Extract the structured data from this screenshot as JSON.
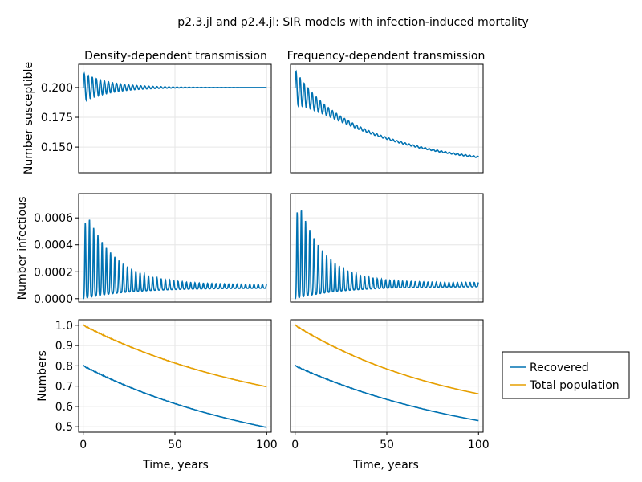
{
  "title": "p2.3.jl and p2.4.jl: SIR models with infection-induced mortality",
  "colors": {
    "blue": "#0072b2",
    "orange": "#e69f00",
    "grid": "#e6e6e6",
    "frame": "#000000"
  },
  "legend": {
    "items": [
      "Recovered",
      "Total population"
    ],
    "placement": "right"
  },
  "chart_data": [
    {
      "type": "line",
      "title": "Density-dependent transmission",
      "xlabel": "",
      "ylabel": "Number susceptible",
      "xlim": [
        -2.5,
        102.5
      ],
      "ylim": [
        0.1285,
        0.2195
      ],
      "xticks": [
        0,
        50,
        100
      ],
      "yticks": [
        0.15,
        0.175,
        0.2
      ],
      "ytick_labels": [
        "0.150",
        "0.175",
        "0.200"
      ],
      "series": [
        {
          "color": "blue",
          "model": "osc",
          "start": 0.2,
          "final": 0.2,
          "amp0": 0.012,
          "amp_decay": 15,
          "period": 2.2
        }
      ]
    },
    {
      "type": "line",
      "title": "Frequency-dependent transmission",
      "xlabel": "",
      "ylabel": "",
      "xlim": [
        -2.5,
        102.5
      ],
      "ylim": [
        0.1285,
        0.2195
      ],
      "xticks": [
        0,
        50,
        100
      ],
      "yticks": [
        0.15,
        0.175,
        0.2
      ],
      "ytick_labels": [
        "",
        "",
        ""
      ],
      "series": [
        {
          "color": "blue",
          "model": "trend_osc",
          "start": 0.2,
          "final": 0.1325,
          "trend_scale": 50,
          "amp0": 0.014,
          "amp_decay": 12,
          "period": 2.2
        }
      ]
    },
    {
      "type": "line",
      "title": "",
      "xlabel": "",
      "ylabel": "Number infectious",
      "xlim": [
        -2.5,
        102.5
      ],
      "ylim": [
        -2.5e-05,
        0.00078
      ],
      "xticks": [
        0,
        50,
        100
      ],
      "yticks": [
        0,
        0.0002,
        0.0004,
        0.0006
      ],
      "ytick_labels": [
        "0.0000",
        "0.0002",
        "0.0004",
        "0.0006"
      ],
      "series": [
        {
          "color": "blue",
          "model": "spikes",
          "period": 2.3,
          "width": 0.42,
          "t_first": 1.1,
          "level": 0.000105,
          "peak0": 0.00067,
          "peak_decay": 16,
          "baseline_rise": 25
        }
      ]
    },
    {
      "type": "line",
      "title": "",
      "xlabel": "",
      "ylabel": "",
      "xlim": [
        -2.5,
        102.5
      ],
      "ylim": [
        -2.5e-05,
        0.00078
      ],
      "xticks": [
        0,
        50,
        100
      ],
      "yticks": [
        0,
        0.0002,
        0.0004,
        0.0006
      ],
      "ytick_labels": [
        "",
        "",
        "",
        ""
      ],
      "series": [
        {
          "color": "blue",
          "model": "spikes",
          "period": 2.3,
          "width": 0.42,
          "t_first": 1.1,
          "level": 0.00012,
          "peak0": 0.00076,
          "peak_decay": 14,
          "baseline_rise": 25
        }
      ]
    },
    {
      "type": "line",
      "title": "",
      "xlabel": "Time, years",
      "ylabel": "Numbers",
      "xlim": [
        -2.5,
        102.5
      ],
      "ylim": [
        0.473,
        1.027
      ],
      "xticks": [
        0,
        50,
        100
      ],
      "yticks": [
        0.5,
        0.6,
        0.7,
        0.8,
        0.9,
        1.0
      ],
      "ytick_labels": [
        "0.5",
        "0.6",
        "0.7",
        "0.8",
        "0.9",
        "1.0"
      ],
      "series": [
        {
          "name": "Recovered",
          "color": "blue",
          "model": "decay_stair",
          "start": 0.8,
          "final": 0.497,
          "floor": 0.3,
          "period": 2.2,
          "step_amp": 0.006,
          "step_decay": 40
        },
        {
          "name": "Total population",
          "color": "orange",
          "model": "decay_stair",
          "start": 1.0,
          "final": 0.697,
          "floor": 0.5,
          "period": 2.2,
          "step_amp": 0.006,
          "step_decay": 40
        }
      ]
    },
    {
      "type": "line",
      "title": "",
      "xlabel": "Time, years",
      "ylabel": "",
      "xlim": [
        -2.5,
        102.5
      ],
      "ylim": [
        0.473,
        1.027
      ],
      "xticks": [
        0,
        50,
        100
      ],
      "yticks": [
        0.5,
        0.6,
        0.7,
        0.8,
        0.9,
        1.0
      ],
      "ytick_labels": [
        "",
        "",
        "",
        "",
        "",
        ""
      ],
      "series": [
        {
          "name": "Recovered",
          "color": "blue",
          "model": "decay_stair",
          "start": 0.8,
          "final": 0.53,
          "floor": 0.35,
          "period": 2.2,
          "step_amp": 0.006,
          "step_decay": 40
        },
        {
          "name": "Total population",
          "color": "orange",
          "model": "decay_stair",
          "start": 1.0,
          "final": 0.662,
          "floor": 0.5,
          "period": 2.2,
          "step_amp": 0.006,
          "step_decay": 40
        }
      ]
    }
  ]
}
